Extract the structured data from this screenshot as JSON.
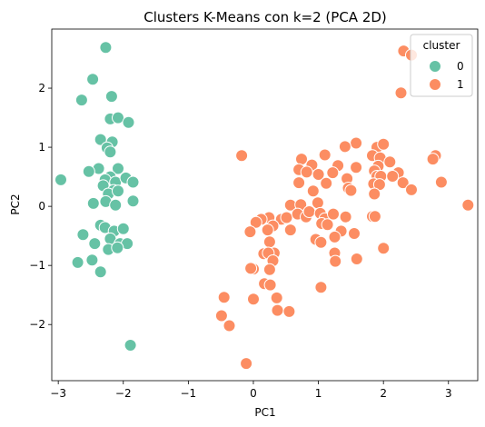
{
  "chart_data": {
    "type": "scatter",
    "title": "Clusters K-Means con k=2 (PCA 2D)",
    "xlabel": "PC1",
    "ylabel": "PC2",
    "xlim": [
      -3.1,
      3.45
    ],
    "ylim": [
      -2.95,
      3.0
    ],
    "xticks": [
      -3,
      -2,
      -1,
      0,
      1,
      2,
      3
    ],
    "yticks": [
      -2,
      -1,
      0,
      1,
      2
    ],
    "grid": false,
    "legend": {
      "title": "cluster",
      "position": "top-right"
    },
    "series": [
      {
        "name": "0",
        "color": "#66c2a5",
        "points": [
          [
            -2.27,
            2.69
          ],
          [
            -2.47,
            2.15
          ],
          [
            -2.64,
            1.8
          ],
          [
            -2.18,
            1.86
          ],
          [
            -2.2,
            1.48
          ],
          [
            -2.08,
            1.5
          ],
          [
            -1.92,
            1.42
          ],
          [
            -2.35,
            1.13
          ],
          [
            -2.17,
            1.09
          ],
          [
            -2.25,
            0.99
          ],
          [
            -2.2,
            0.92
          ],
          [
            -2.08,
            0.64
          ],
          [
            -2.38,
            0.64
          ],
          [
            -2.53,
            0.59
          ],
          [
            -2.96,
            0.45
          ],
          [
            -2.2,
            0.5
          ],
          [
            -2.28,
            0.45
          ],
          [
            -2.12,
            0.41
          ],
          [
            -1.96,
            0.48
          ],
          [
            -1.85,
            0.41
          ],
          [
            -2.31,
            0.35
          ],
          [
            -2.15,
            0.27
          ],
          [
            -2.23,
            0.21
          ],
          [
            -2.08,
            0.26
          ],
          [
            -2.46,
            0.05
          ],
          [
            -2.27,
            0.08
          ],
          [
            -2.12,
            0.02
          ],
          [
            -1.85,
            0.09
          ],
          [
            -2.35,
            -0.32
          ],
          [
            -2.28,
            -0.36
          ],
          [
            -2.14,
            -0.42
          ],
          [
            -2.0,
            -0.38
          ],
          [
            -2.62,
            -0.48
          ],
          [
            -2.2,
            -0.55
          ],
          [
            -2.44,
            -0.63
          ],
          [
            -2.05,
            -0.63
          ],
          [
            -1.94,
            -0.63
          ],
          [
            -2.23,
            -0.73
          ],
          [
            -2.09,
            -0.7
          ],
          [
            -2.48,
            -0.91
          ],
          [
            -2.7,
            -0.95
          ],
          [
            -2.35,
            -1.11
          ],
          [
            -1.89,
            -2.35
          ]
        ]
      },
      {
        "name": "1",
        "color": "#fc8d62",
        "points": [
          [
            2.31,
            2.63
          ],
          [
            2.43,
            2.56
          ],
          [
            2.27,
            1.92
          ],
          [
            1.58,
            1.07
          ],
          [
            1.41,
            1.01
          ],
          [
            1.9,
            1.0
          ],
          [
            2.0,
            1.05
          ],
          [
            1.1,
            0.87
          ],
          [
            2.8,
            0.86
          ],
          [
            2.76,
            0.8
          ],
          [
            -0.18,
            0.86
          ],
          [
            0.74,
            0.8
          ],
          [
            0.9,
            0.7
          ],
          [
            1.3,
            0.69
          ],
          [
            1.83,
            0.86
          ],
          [
            1.95,
            0.82
          ],
          [
            1.92,
            0.68
          ],
          [
            2.1,
            0.75
          ],
          [
            0.7,
            0.62
          ],
          [
            0.82,
            0.58
          ],
          [
            1.0,
            0.54
          ],
          [
            1.22,
            0.57
          ],
          [
            1.58,
            0.66
          ],
          [
            1.86,
            0.6
          ],
          [
            2.23,
            0.57
          ],
          [
            1.9,
            0.51
          ],
          [
            1.96,
            0.51
          ],
          [
            2.14,
            0.51
          ],
          [
            1.44,
            0.47
          ],
          [
            1.12,
            0.39
          ],
          [
            0.7,
            0.4
          ],
          [
            2.3,
            0.4
          ],
          [
            2.89,
            0.41
          ],
          [
            1.85,
            0.38
          ],
          [
            1.94,
            0.37
          ],
          [
            0.92,
            0.26
          ],
          [
            1.46,
            0.31
          ],
          [
            1.5,
            0.27
          ],
          [
            2.43,
            0.28
          ],
          [
            1.86,
            0.21
          ],
          [
            0.57,
            0.02
          ],
          [
            0.99,
            0.06
          ],
          [
            0.73,
            0.03
          ],
          [
            3.3,
            0.02
          ],
          [
            0.24,
            -0.19
          ],
          [
            0.43,
            -0.22
          ],
          [
            0.51,
            -0.19
          ],
          [
            0.12,
            -0.22
          ],
          [
            0.68,
            -0.13
          ],
          [
            0.81,
            -0.18
          ],
          [
            0.86,
            -0.09
          ],
          [
            1.03,
            -0.12
          ],
          [
            1.1,
            -0.21
          ],
          [
            1.23,
            -0.13
          ],
          [
            1.42,
            -0.18
          ],
          [
            1.83,
            -0.17
          ],
          [
            1.87,
            -0.17
          ],
          [
            1.05,
            -0.29
          ],
          [
            1.14,
            -0.31
          ],
          [
            0.3,
            -0.33
          ],
          [
            0.04,
            -0.27
          ],
          [
            -0.05,
            -0.43
          ],
          [
            0.22,
            -0.4
          ],
          [
            0.57,
            -0.4
          ],
          [
            1.35,
            -0.42
          ],
          [
            1.25,
            -0.52
          ],
          [
            1.55,
            -0.46
          ],
          [
            0.25,
            -0.6
          ],
          [
            0.96,
            -0.56
          ],
          [
            1.04,
            -0.61
          ],
          [
            2.0,
            -0.71
          ],
          [
            0.32,
            -0.79
          ],
          [
            0.16,
            -0.8
          ],
          [
            0.23,
            -0.79
          ],
          [
            1.25,
            -0.79
          ],
          [
            0.3,
            -0.92
          ],
          [
            1.26,
            -0.93
          ],
          [
            1.59,
            -0.89
          ],
          [
            0.25,
            -1.07
          ],
          [
            0.0,
            -1.06
          ],
          [
            -0.04,
            -1.05
          ],
          [
            0.17,
            -1.31
          ],
          [
            1.04,
            -1.37
          ],
          [
            0.26,
            -1.33
          ],
          [
            0.36,
            -1.55
          ],
          [
            0.0,
            -1.57
          ],
          [
            0.37,
            -1.76
          ],
          [
            0.55,
            -1.78
          ],
          [
            -0.45,
            -1.54
          ],
          [
            -0.49,
            -1.85
          ],
          [
            -0.37,
            -2.02
          ],
          [
            -0.11,
            -2.66
          ]
        ]
      }
    ]
  }
}
